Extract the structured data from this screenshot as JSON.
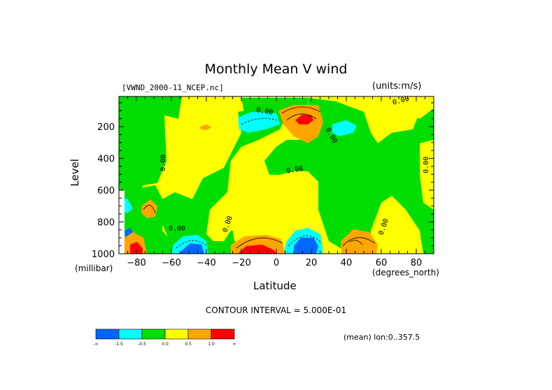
{
  "chart_data": {
    "type": "heatmap",
    "title": "Monthly Mean V wind",
    "dataset_label": "[VWND_2000-11_NCEP.nc]",
    "units_label": "(units:m/s)",
    "ylabel": "Level",
    "y_units": "(millibar)",
    "xlabel": "Latitude",
    "x_units": "(degrees_north)",
    "xlim": [
      -90,
      90
    ],
    "ylim": [
      1000,
      10
    ],
    "y_inverted": true,
    "x_ticks": [
      -80,
      -60,
      -40,
      -20,
      0,
      20,
      40,
      60,
      80
    ],
    "y_ticks": [
      200,
      400,
      600,
      800,
      1000
    ],
    "contour_interval_text": "CONTOUR INTERVAL = 5.000E-01",
    "mean_text": "(mean) lon:0..357.5",
    "contour_labels": [
      "0.00",
      "0.00",
      "0.00",
      "0.00",
      "0.00",
      "0.00",
      "0.00",
      "0.00",
      "0.00"
    ],
    "colorbar": {
      "levels": [
        "-∞",
        "-1.5",
        "-0.5",
        "0.0",
        "0.5",
        "1.0",
        "∞"
      ],
      "colors": [
        "#0066ff",
        "#00ffff",
        "#00dd00",
        "#ffff00",
        "#ffa500",
        "#ff0000"
      ]
    },
    "regions": [
      {
        "name": "positive core",
        "lat": 15,
        "level": 150,
        "value": 1.5
      },
      {
        "name": "positive core",
        "lat": -15,
        "level": 980,
        "value": 1.5
      },
      {
        "name": "negative core",
        "lat": 15,
        "level": 980,
        "value": -1.5
      },
      {
        "name": "negative core",
        "lat": -55,
        "level": 990,
        "value": -1.5
      },
      {
        "name": "positive core",
        "lat": -85,
        "level": 990,
        "value": 1.5
      },
      {
        "name": "positive",
        "lat": 45,
        "level": 940,
        "value": 1.0
      }
    ]
  }
}
